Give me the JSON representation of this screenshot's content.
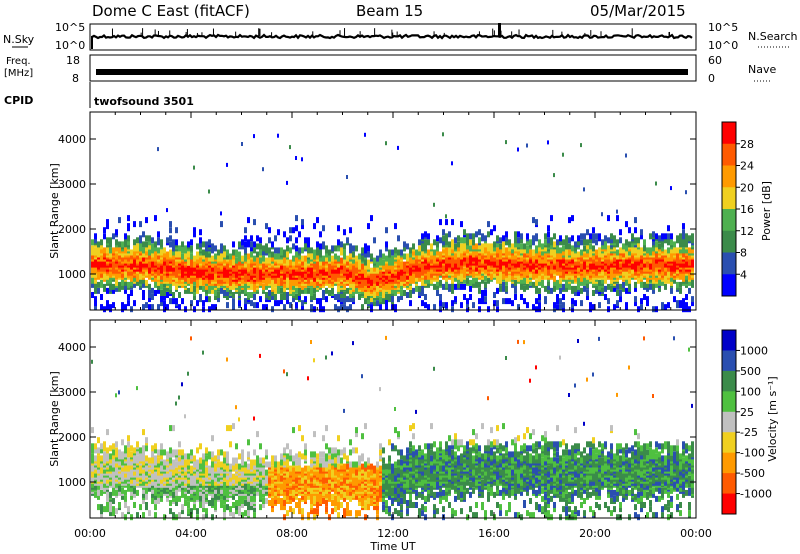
{
  "header": {
    "title_left": "Dome C East (fitACF)",
    "title_center": "Beam 15",
    "title_right": "05/Mar/2015"
  },
  "panels": {
    "nsky": {
      "label": "N.Sky",
      "right_label": "N.Search",
      "ticks_left": [
        "10^5",
        "10^0"
      ],
      "ticks_right": [
        "10^5",
        "10^0"
      ]
    },
    "freq": {
      "label_1": "Freq.",
      "label_2": "[MHz]",
      "right_label": "Nave",
      "ticks_left": [
        "18",
        "8"
      ],
      "ticks_right": [
        "60",
        "0"
      ]
    },
    "cpid": {
      "label": "CPID",
      "value": "twofsound 3501"
    }
  },
  "colors": {
    "power": [
      "#0000ff",
      "#2a4fb0",
      "#3b8b4a",
      "#4fb050",
      "#f0d020",
      "#ff9a00",
      "#ff5a00",
      "#ff0000"
    ],
    "velocity": [
      "#ff0000",
      "#ff5a00",
      "#ff9a00",
      "#f0d020",
      "#c0c0c0",
      "#4fc040",
      "#3b8b4a",
      "#2a4fb0",
      "#0000c8"
    ]
  },
  "chart_data": [
    {
      "type": "heatmap",
      "title": "Power",
      "ylabel": "Slant Range [km]",
      "xlabel": "Time UT",
      "x_ticks": [
        "00:00",
        "04:00",
        "08:00",
        "12:00",
        "16:00",
        "20:00",
        "00:00"
      ],
      "y_ticks": [
        "1000",
        "2000",
        "3000",
        "4000"
      ],
      "ylim": [
        200,
        4600
      ],
      "xlim_hours": [
        0,
        24
      ],
      "colorbar": {
        "label": "Power [dB]",
        "ticks": [
          "28",
          "24",
          "20",
          "16",
          "12",
          "8",
          "4"
        ]
      },
      "band_center_km": [
        1250,
        1250,
        1100,
        1050,
        1050,
        1100,
        900,
        1000,
        1200,
        1300,
        1250,
        1200,
        1250,
        1250
      ],
      "band_hours": [
        0,
        2,
        4,
        6,
        8,
        10,
        11,
        12,
        13,
        15,
        17,
        19,
        21,
        24
      ]
    },
    {
      "type": "heatmap",
      "title": "Velocity",
      "ylabel": "Slant Range [km]",
      "xlabel": "Time UT",
      "x_ticks": [
        "00:00",
        "04:00",
        "08:00",
        "12:00",
        "16:00",
        "20:00",
        "00:00"
      ],
      "y_ticks": [
        "1000",
        "2000",
        "3000",
        "4000"
      ],
      "ylim": [
        200,
        4600
      ],
      "xlim_hours": [
        0,
        24
      ],
      "colorbar": {
        "label": "Velocity [m s⁻¹]",
        "ticks": [
          "1000",
          "500",
          "100",
          "25",
          "-25",
          "-100",
          "-500",
          "-1000"
        ]
      }
    }
  ],
  "xaxis_label": "Time UT"
}
